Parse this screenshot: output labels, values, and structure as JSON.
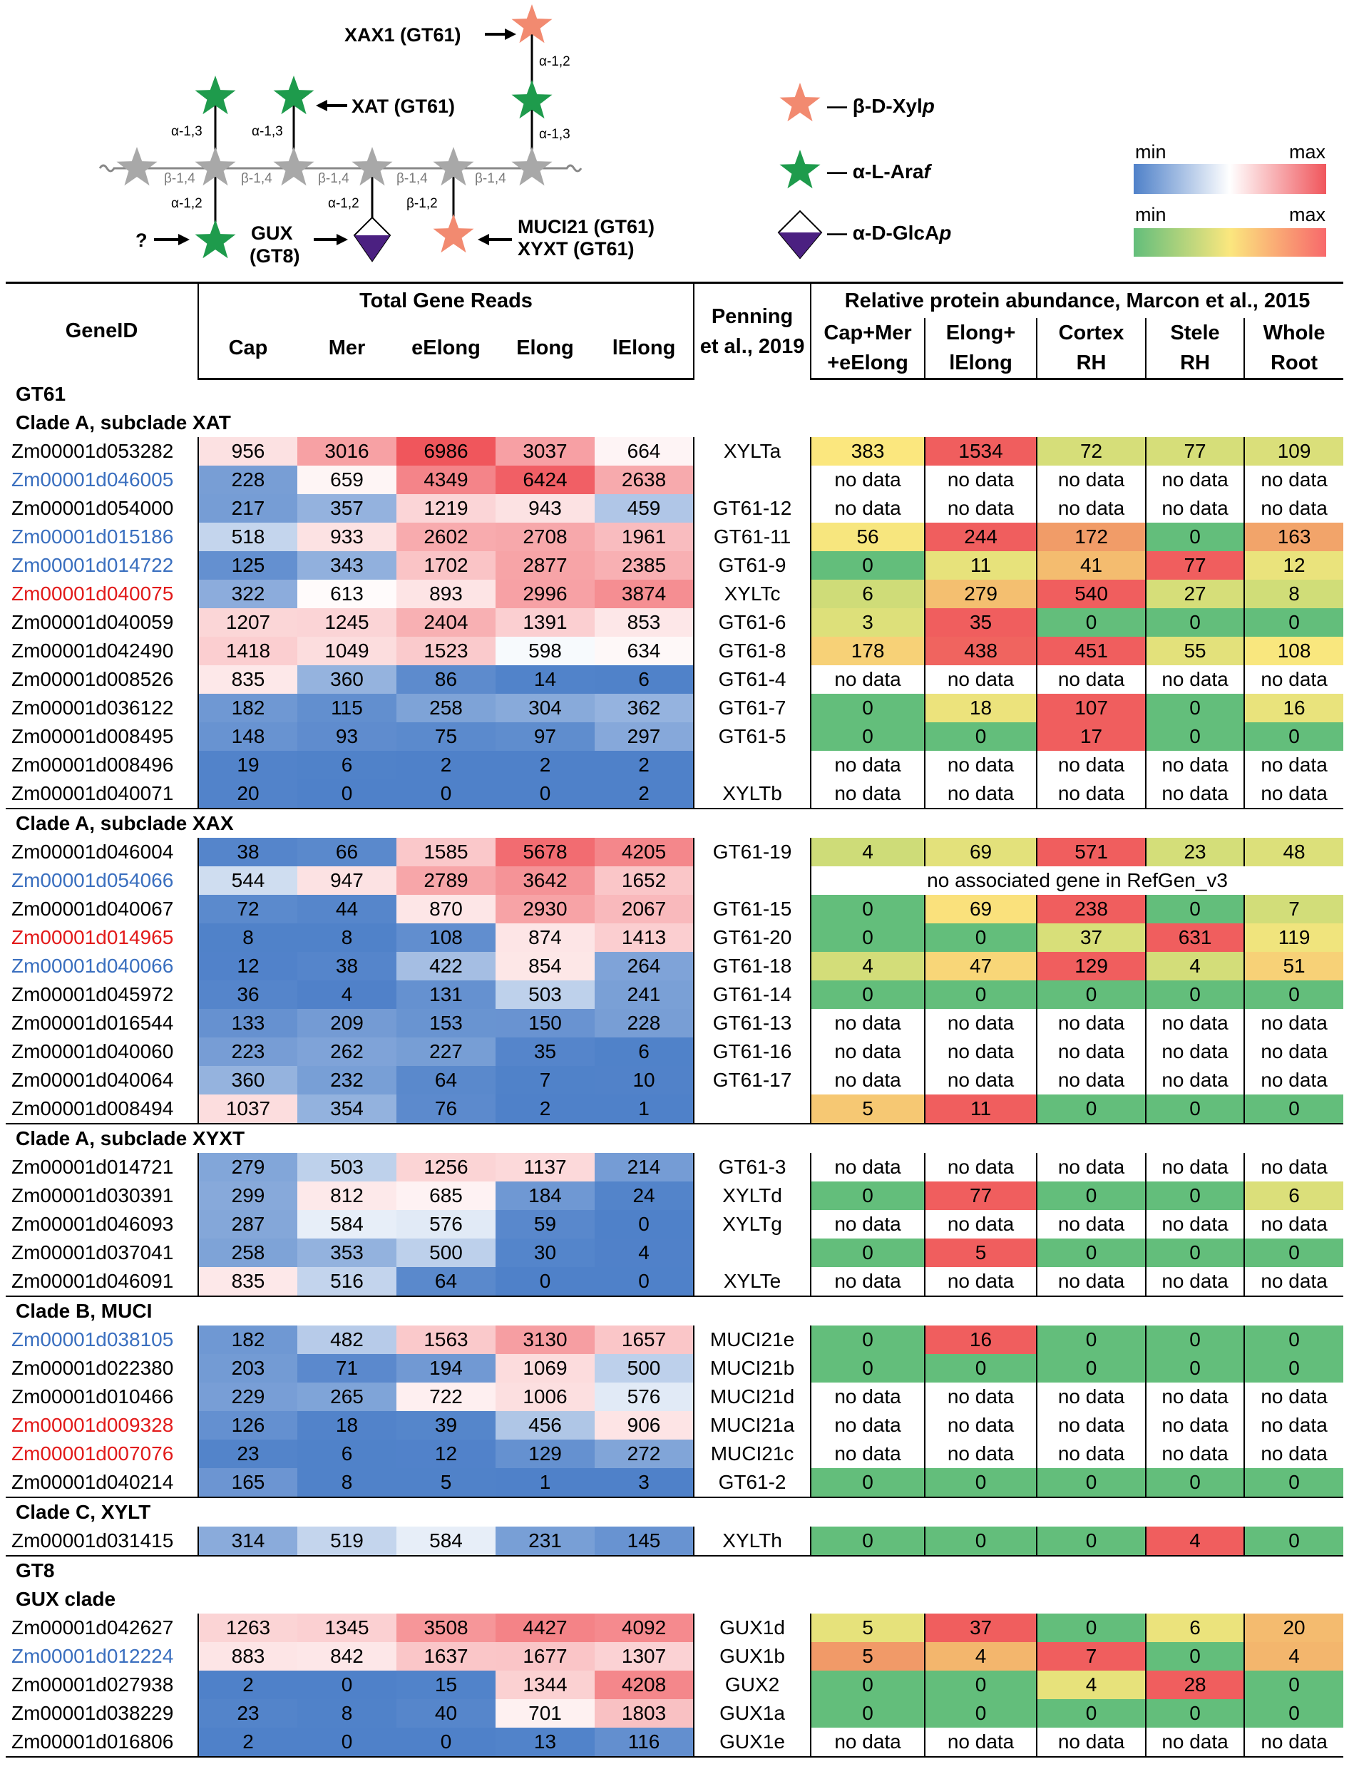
{
  "diagram": {
    "enzymes": {
      "xax1": "XAX1 (GT61)",
      "xat": "XAT (GT61)",
      "gux_line1": "GUX",
      "gux_line2": "(GT8)",
      "muci21": "MUCI21 (GT61)",
      "xyxt": "XYXT (GT61)",
      "question": "?"
    },
    "linkages": {
      "a13_left": "α-1,3",
      "a13_mid": "α-1,3",
      "a12_top": "α-1,2",
      "a13_right": "α-1,3",
      "b14_1": "β-1,4",
      "b14_2": "β-1,4",
      "b14_3": "β-1,4",
      "b14_4": "β-1,4",
      "b14_5": "β-1,4",
      "a12_gux": "α-1,2",
      "a12_glca": "α-1,2",
      "b12_xyl": "β-1,2"
    },
    "legend": {
      "xyl_pre": "— β-D-Xyl",
      "xyl_it": "p",
      "ara_pre": "— α-L-Ara",
      "ara_it": "f",
      "glca_pre": "— α-D-GlcA",
      "glca_it": "p",
      "min1": "min",
      "max1": "max",
      "min2": "min",
      "max2": "max"
    },
    "colors": {
      "xylose": "#f28a70",
      "arabinose": "#1e9b4c",
      "glca": "#4b2081",
      "backbone": "#a8a8a8"
    }
  },
  "table": {
    "headers": {
      "gene_id": "GeneID",
      "total_reads": "Total Gene Reads",
      "cap": "Cap",
      "mer": "Mer",
      "eelong": "eElong",
      "elong": "Elong",
      "lelong": "lElong",
      "penning1": "Penning",
      "penning2": "et al., 2019",
      "protein": "Relative protein abundance, Marcon et al., 2015",
      "p1a": "Cap+Mer",
      "p1b": "+eElong",
      "p2a": "Elong+",
      "p2b": "lElong",
      "p3a": "Cortex",
      "p3b": "RH",
      "p4a": "Stele",
      "p4b": "RH",
      "p5a": "Whole",
      "p5b": "Root"
    },
    "rows": [
      {
        "type": "section",
        "label": "GT61",
        "ruled": false
      },
      {
        "type": "section",
        "label": "Clade A, subclade XAT",
        "ruled": false
      },
      {
        "type": "gene",
        "id": "Zm00001d053282",
        "color": "black",
        "reads": [
          956,
          3016,
          6986,
          3037,
          664
        ],
        "name": "XYLTa",
        "protein": [
          383,
          1534,
          72,
          77,
          109
        ]
      },
      {
        "type": "gene",
        "id": "Zm00001d046005",
        "color": "blue",
        "reads": [
          228,
          659,
          4349,
          6424,
          2638
        ],
        "name": "",
        "protein": [
          "no data",
          "no data",
          "no data",
          "no data",
          "no data"
        ]
      },
      {
        "type": "gene",
        "id": "Zm00001d054000",
        "color": "black",
        "reads": [
          217,
          357,
          1219,
          943,
          459
        ],
        "name": "GT61-12",
        "protein": [
          "no data",
          "no data",
          "no data",
          "no data",
          "no data"
        ]
      },
      {
        "type": "gene",
        "id": "Zm00001d015186",
        "color": "blue",
        "reads": [
          518,
          933,
          2602,
          2708,
          1961
        ],
        "name": "GT61-11",
        "protein": [
          56,
          244,
          172,
          0,
          163
        ]
      },
      {
        "type": "gene",
        "id": "Zm00001d014722",
        "color": "blue",
        "reads": [
          125,
          343,
          1702,
          2877,
          2385
        ],
        "name": "GT61-9",
        "protein": [
          0,
          11,
          41,
          77,
          12
        ]
      },
      {
        "type": "gene",
        "id": "Zm00001d040075",
        "color": "red",
        "reads": [
          322,
          613,
          893,
          2996,
          3874
        ],
        "name": "XYLTc",
        "protein": [
          6,
          279,
          540,
          27,
          8
        ]
      },
      {
        "type": "gene",
        "id": "Zm00001d040059",
        "color": "black",
        "reads": [
          1207,
          1245,
          2404,
          1391,
          853
        ],
        "name": "GT61-6",
        "protein": [
          3,
          35,
          0,
          0,
          0
        ]
      },
      {
        "type": "gene",
        "id": "Zm00001d042490",
        "color": "black",
        "reads": [
          1418,
          1049,
          1523,
          598,
          634
        ],
        "name": "GT61-8",
        "protein": [
          178,
          438,
          451,
          55,
          108
        ]
      },
      {
        "type": "gene",
        "id": "Zm00001d008526",
        "color": "black",
        "reads": [
          835,
          360,
          86,
          14,
          6
        ],
        "name": "GT61-4",
        "protein": [
          "no data",
          "no data",
          "no data",
          "no data",
          "no data"
        ]
      },
      {
        "type": "gene",
        "id": "Zm00001d036122",
        "color": "black",
        "reads": [
          182,
          115,
          258,
          304,
          362
        ],
        "name": "GT61-7",
        "protein": [
          0,
          18,
          107,
          0,
          16
        ]
      },
      {
        "type": "gene",
        "id": "Zm00001d008495",
        "color": "black",
        "reads": [
          148,
          93,
          75,
          97,
          297
        ],
        "name": "GT61-5",
        "protein": [
          0,
          0,
          17,
          0,
          0
        ]
      },
      {
        "type": "gene",
        "id": "Zm00001d008496",
        "color": "black",
        "reads": [
          19,
          6,
          2,
          2,
          2
        ],
        "name": "",
        "protein": [
          "no data",
          "no data",
          "no data",
          "no data",
          "no data"
        ]
      },
      {
        "type": "gene",
        "id": "Zm00001d040071",
        "color": "black",
        "reads": [
          20,
          0,
          0,
          0,
          2
        ],
        "name": "XYLTb",
        "protein": [
          "no data",
          "no data",
          "no data",
          "no data",
          "no data"
        ]
      },
      {
        "type": "section",
        "label": "Clade A, subclade XAX",
        "ruled": true
      },
      {
        "type": "gene",
        "id": "Zm00001d046004",
        "color": "black",
        "reads": [
          38,
          66,
          1585,
          5678,
          4205
        ],
        "name": "GT61-19",
        "protein": [
          4,
          69,
          571,
          23,
          48
        ]
      },
      {
        "type": "gene",
        "id": "Zm00001d054066",
        "color": "blue",
        "reads": [
          544,
          947,
          2789,
          3642,
          1652
        ],
        "name": "",
        "note": "no associated gene in RefGen_v3"
      },
      {
        "type": "gene",
        "id": "Zm00001d040067",
        "color": "black",
        "reads": [
          72,
          44,
          870,
          2930,
          2067
        ],
        "name": "GT61-15",
        "protein": [
          0,
          69,
          238,
          0,
          7
        ]
      },
      {
        "type": "gene",
        "id": "Zm00001d014965",
        "color": "red",
        "reads": [
          8,
          8,
          108,
          874,
          1413
        ],
        "name": "GT61-20",
        "protein": [
          0,
          0,
          37,
          631,
          119
        ]
      },
      {
        "type": "gene",
        "id": "Zm00001d040066",
        "color": "blue",
        "reads": [
          12,
          38,
          422,
          854,
          264
        ],
        "name": "GT61-18",
        "protein": [
          4,
          47,
          129,
          4,
          51
        ]
      },
      {
        "type": "gene",
        "id": "Zm00001d045972",
        "color": "black",
        "reads": [
          36,
          4,
          131,
          503,
          241
        ],
        "name": "GT61-14",
        "protein": [
          0,
          0,
          0,
          0,
          0
        ]
      },
      {
        "type": "gene",
        "id": "Zm00001d016544",
        "color": "black",
        "reads": [
          133,
          209,
          153,
          150,
          228
        ],
        "name": "GT61-13",
        "protein": [
          "no data",
          "no data",
          "no data",
          "no data",
          "no data"
        ]
      },
      {
        "type": "gene",
        "id": "Zm00001d040060",
        "color": "black",
        "reads": [
          223,
          262,
          227,
          35,
          6
        ],
        "name": "GT61-16",
        "protein": [
          "no data",
          "no data",
          "no data",
          "no data",
          "no data"
        ]
      },
      {
        "type": "gene",
        "id": "Zm00001d040064",
        "color": "black",
        "reads": [
          360,
          232,
          64,
          7,
          10
        ],
        "name": "GT61-17",
        "protein": [
          "no data",
          "no data",
          "no data",
          "no data",
          "no data"
        ]
      },
      {
        "type": "gene",
        "id": "Zm00001d008494",
        "color": "black",
        "reads": [
          1037,
          354,
          76,
          2,
          1
        ],
        "name": "",
        "protein": [
          5,
          11,
          0,
          0,
          0
        ]
      },
      {
        "type": "section",
        "label": "Clade A, subclade XYXT",
        "ruled": true
      },
      {
        "type": "gene",
        "id": "Zm00001d014721",
        "color": "black",
        "reads": [
          279,
          503,
          1256,
          1137,
          214
        ],
        "name": "GT61-3",
        "protein": [
          "no data",
          "no data",
          "no data",
          "no data",
          "no data"
        ]
      },
      {
        "type": "gene",
        "id": "Zm00001d030391",
        "color": "black",
        "reads": [
          299,
          812,
          685,
          184,
          24
        ],
        "name": "XYLTd",
        "protein": [
          0,
          77,
          0,
          0,
          6
        ]
      },
      {
        "type": "gene",
        "id": "Zm00001d046093",
        "color": "black",
        "reads": [
          287,
          584,
          576,
          59,
          0
        ],
        "name": "XYLTg",
        "protein": [
          "no data",
          "no data",
          "no data",
          "no data",
          "no data"
        ]
      },
      {
        "type": "gene",
        "id": "Zm00001d037041",
        "color": "black",
        "reads": [
          258,
          353,
          500,
          30,
          4
        ],
        "name": "",
        "protein": [
          0,
          5,
          0,
          0,
          0
        ]
      },
      {
        "type": "gene",
        "id": "Zm00001d046091",
        "color": "black",
        "reads": [
          835,
          516,
          64,
          0,
          0
        ],
        "name": "XYLTe",
        "protein": [
          "no data",
          "no data",
          "no data",
          "no data",
          "no data"
        ]
      },
      {
        "type": "section",
        "label": "Clade B, MUCI",
        "ruled": true
      },
      {
        "type": "gene",
        "id": "Zm00001d038105",
        "color": "blue",
        "reads": [
          182,
          482,
          1563,
          3130,
          1657
        ],
        "name": "MUCI21e",
        "protein": [
          0,
          16,
          0,
          0,
          0
        ]
      },
      {
        "type": "gene",
        "id": "Zm00001d022380",
        "color": "black",
        "reads": [
          203,
          71,
          194,
          1069,
          500
        ],
        "name": "MUCI21b",
        "protein": [
          0,
          0,
          0,
          0,
          0
        ]
      },
      {
        "type": "gene",
        "id": "Zm00001d010466",
        "color": "black",
        "reads": [
          229,
          265,
          722,
          1006,
          576
        ],
        "name": "MUCI21d",
        "protein": [
          "no data",
          "no data",
          "no data",
          "no data",
          "no data"
        ]
      },
      {
        "type": "gene",
        "id": "Zm00001d009328",
        "color": "red",
        "reads": [
          126,
          18,
          39,
          456,
          906
        ],
        "name": "MUCI21a",
        "protein": [
          "no data",
          "no data",
          "no data",
          "no data",
          "no data"
        ]
      },
      {
        "type": "gene",
        "id": "Zm00001d007076",
        "color": "red",
        "reads": [
          23,
          6,
          12,
          129,
          272
        ],
        "name": "MUCI21c",
        "protein": [
          "no data",
          "no data",
          "no data",
          "no data",
          "no data"
        ]
      },
      {
        "type": "gene",
        "id": "Zm00001d040214",
        "color": "black",
        "reads": [
          165,
          8,
          5,
          1,
          3
        ],
        "name": "GT61-2",
        "protein": [
          0,
          0,
          0,
          0,
          0
        ]
      },
      {
        "type": "section",
        "label": "Clade C, XYLT",
        "ruled": true
      },
      {
        "type": "gene",
        "id": "Zm00001d031415",
        "color": "black",
        "reads": [
          314,
          519,
          584,
          231,
          145
        ],
        "name": "XYLTh",
        "protein": [
          0,
          0,
          0,
          4,
          0
        ]
      },
      {
        "type": "section",
        "label": "GT8",
        "ruled": true
      },
      {
        "type": "section",
        "label": "GUX clade",
        "ruled": false
      },
      {
        "type": "gene",
        "id": "Zm00001d042627",
        "color": "black",
        "reads": [
          1263,
          1345,
          3508,
          4427,
          4092
        ],
        "name": "GUX1d",
        "protein": [
          5,
          37,
          0,
          6,
          20
        ]
      },
      {
        "type": "gene",
        "id": "Zm00001d012224",
        "color": "blue",
        "reads": [
          883,
          842,
          1637,
          1677,
          1307
        ],
        "name": "GUX1b",
        "protein": [
          5,
          4,
          7,
          0,
          4
        ]
      },
      {
        "type": "gene",
        "id": "Zm00001d027938",
        "color": "black",
        "reads": [
          2,
          0,
          15,
          1344,
          4208
        ],
        "name": "GUX2",
        "protein": [
          0,
          0,
          4,
          28,
          0
        ]
      },
      {
        "type": "gene",
        "id": "Zm00001d038229",
        "color": "black",
        "reads": [
          23,
          8,
          40,
          701,
          1803
        ],
        "name": "GUX1a",
        "protein": [
          0,
          0,
          0,
          0,
          0
        ]
      },
      {
        "type": "gene",
        "id": "Zm00001d016806",
        "color": "black",
        "reads": [
          2,
          0,
          0,
          13,
          116
        ],
        "name": "GUX1e",
        "protein": [
          "no data",
          "no data",
          "no data",
          "no data",
          "no data"
        ]
      }
    ]
  }
}
